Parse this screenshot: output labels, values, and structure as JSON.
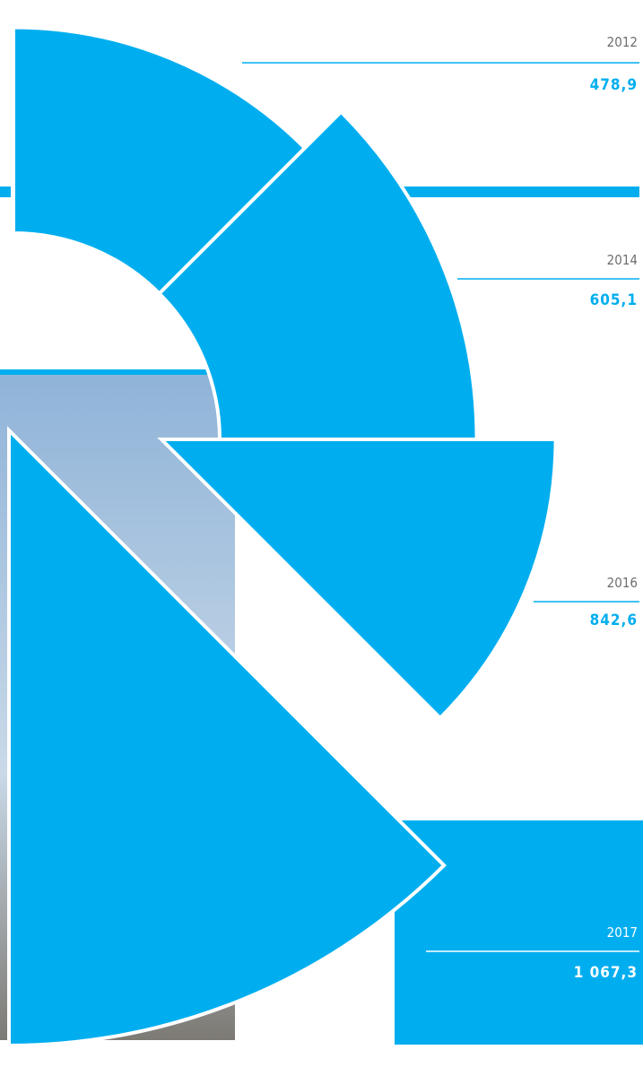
{
  "chart_data": {
    "type": "rose",
    "categories": [
      "2012",
      "2014",
      "2016",
      "2017"
    ],
    "values": [
      478.9,
      605.1,
      842.6,
      1067.3
    ],
    "value_labels": [
      "478,9",
      "605,1",
      "842,6",
      "1 067,3"
    ],
    "color": "#00aeef"
  }
}
